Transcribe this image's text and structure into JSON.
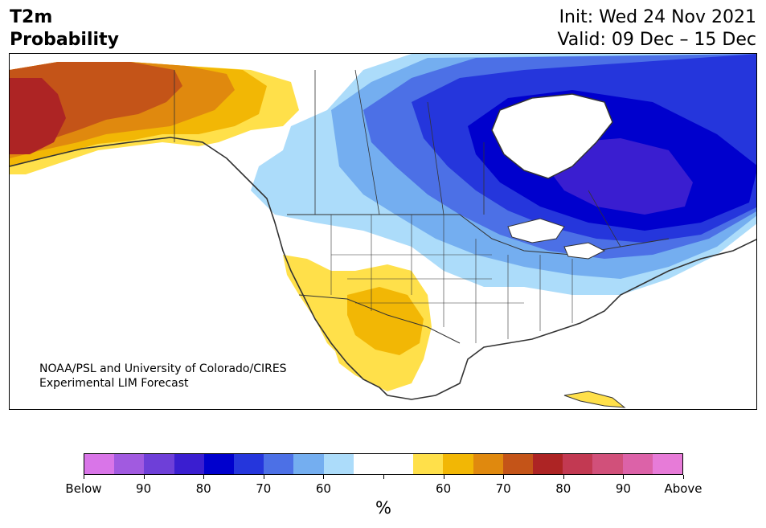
{
  "header": {
    "title_line1": "T2m",
    "title_line2": "Probability",
    "init": "Init: Wed 24 Nov 2021",
    "valid": "Valid: 09 Dec – 15 Dec"
  },
  "map": {
    "credit_line1": "NOAA/PSL and University of Colorado/CIRES",
    "credit_line2": "Experimental LIM Forecast"
  },
  "colorbar": {
    "colors": [
      "#d975e8",
      "#a15ae0",
      "#6e3fd8",
      "#3a1ed0",
      "#0000cd",
      "#2536dc",
      "#4c70e6",
      "#74aef0",
      "#acdcfa",
      "#ffffff",
      "#ffffff",
      "#ffe04a",
      "#f2b705",
      "#e0890e",
      "#c45418",
      "#ad2424",
      "#c23952",
      "#d1507a",
      "#dc62a8",
      "#e77bd8"
    ],
    "labels": [
      "Below",
      "90",
      "80",
      "70",
      "60",
      "",
      "60",
      "70",
      "80",
      "90",
      "Above"
    ],
    "unit": "%"
  }
}
